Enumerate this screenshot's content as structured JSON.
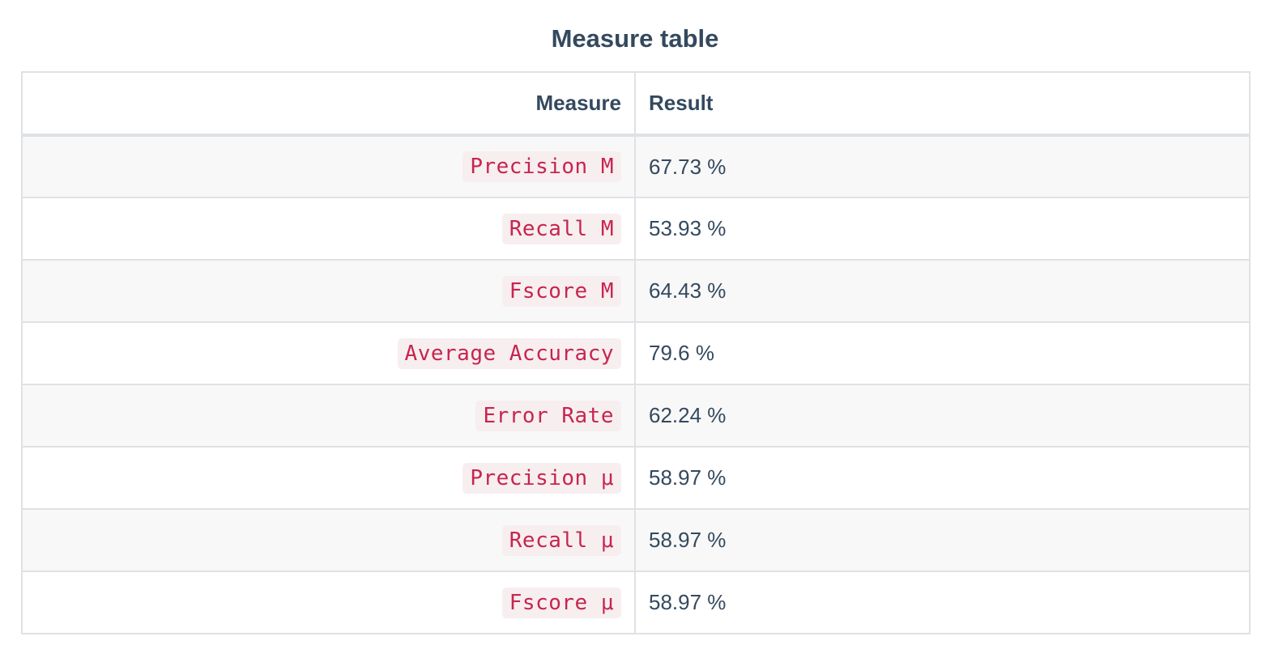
{
  "caption": "Measure table",
  "headers": {
    "measure": "Measure",
    "result": "Result"
  },
  "rows": [
    {
      "measure": "Precision M",
      "result": "67.73 %"
    },
    {
      "measure": "Recall M",
      "result": "53.93 %"
    },
    {
      "measure": "Fscore M",
      "result": "64.43 %"
    },
    {
      "measure": "Average Accuracy",
      "result": "79.6 %"
    },
    {
      "measure": "Error Rate",
      "result": "62.24 %"
    },
    {
      "measure": "Precision μ",
      "result": "58.97 %"
    },
    {
      "measure": "Recall μ",
      "result": "58.97 %"
    },
    {
      "measure": "Fscore μ",
      "result": "58.97 %"
    }
  ],
  "colors": {
    "text": "#34495e",
    "code_text": "#c7254e",
    "code_bg": "#f7eef0",
    "border": "#dfe2e5",
    "stripe": "#f8f8f8"
  }
}
